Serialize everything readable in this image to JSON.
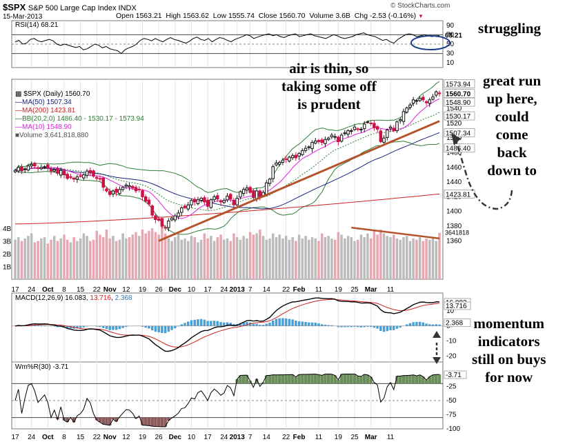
{
  "header": {
    "symbol": "$SPX",
    "name": "S&P 500 Large Cap Index  INDX",
    "date": "15-Mar-2013",
    "open_label": "Open",
    "open": "1563.21",
    "high_label": "High",
    "high": "1563.62",
    "low_label": "Low",
    "low": "1555.74",
    "close_label": "Close",
    "close": "1560.70",
    "volume_label": "Volume",
    "volume": "3.6B",
    "chg_label": "Chg",
    "chg": "-2.53 (-0.16%)",
    "chg_icon": "down-triangle-icon",
    "credit": "© StockCharts.com"
  },
  "annotations": {
    "struggling": "struggling",
    "air_thin": [
      "air is thin, so",
      "taking some off",
      "is prudent"
    ],
    "great_run": [
      "great run",
      "up here,",
      "could",
      "come",
      "back",
      "down to"
    ],
    "momentum": [
      "momentum",
      "indicators",
      "still on buys",
      "for now"
    ]
  },
  "colors": {
    "up_candle": "#111111",
    "down_candle": "#cc1144",
    "ma50": "#1a237e",
    "ma200": "#cc2222",
    "bollinger": "#2e7d32",
    "ma10": "#e020e0",
    "trendline": "#b5532b",
    "volume_up": "#bbbbbb",
    "volume_down": "#eaa6b0",
    "macd_hist": "#4a9fd4",
    "wpr_fill_top": "#6b8e5a",
    "wpr_fill_bottom": "#8b5a5a",
    "rsi_oval": "#1a3a8a"
  },
  "chart_data": [
    {
      "type": "line",
      "name": "rsi",
      "label": "RSI(14) 68.21",
      "ylim": [
        0,
        100
      ],
      "yticks": [
        "90",
        "70",
        "50",
        "30",
        "10"
      ],
      "last_value": "68.21",
      "reference_lines": [
        70,
        50,
        30
      ],
      "values": [
        55,
        58,
        50,
        52,
        60,
        62,
        57,
        55,
        58,
        60,
        57,
        50,
        47,
        50,
        48,
        45,
        43,
        45,
        38,
        40,
        45,
        50,
        48,
        42,
        45,
        40,
        38,
        36,
        30,
        38,
        42,
        45,
        50,
        58,
        62,
        60,
        57,
        62,
        58,
        55,
        60,
        64,
        60,
        58,
        55,
        52,
        56,
        62,
        65,
        60,
        58,
        62,
        55,
        60,
        64,
        62,
        58,
        55,
        60,
        63,
        66,
        70,
        68,
        62,
        65,
        68,
        70,
        72,
        68,
        70,
        66,
        64,
        68,
        70,
        72,
        66,
        68,
        70,
        72,
        68,
        66,
        64,
        62,
        66,
        70,
        68,
        64,
        62,
        64,
        66,
        70,
        72,
        74,
        70,
        68,
        66,
        62,
        58,
        60,
        55,
        52,
        60,
        65,
        70,
        72,
        70,
        66,
        68,
        70,
        68,
        66,
        68,
        68.21
      ]
    },
    {
      "type": "candlestick",
      "name": "price",
      "title": "$SPX (Daily) 1560.70",
      "legend": [
        {
          "label": "$SPX (Daily) 1560.70",
          "icon": "candle-icon"
        },
        {
          "label": "MA(50) 1507.34"
        },
        {
          "label": "MA(200) 1423.81"
        },
        {
          "label": "BB(20,2.0) 1486.40 - 1530.17 - 1573.94"
        },
        {
          "label": "MA(10) 1548.90"
        },
        {
          "label": "Volume 3,641,818,880"
        }
      ],
      "ylim": [
        1350,
        1580
      ],
      "yticks": [
        "1540",
        "1520",
        "1500",
        "1480",
        "1460",
        "1440",
        "1420",
        "1400",
        "1380",
        "1360"
      ],
      "price_labels": [
        {
          "value": 1573.94,
          "text": "1573.94",
          "series": "bb_upper"
        },
        {
          "value": 1560.7,
          "text": "1560.70",
          "series": "close"
        },
        {
          "value": 1548.9,
          "text": "1548.90",
          "series": "ma10"
        },
        {
          "value": 1530.17,
          "text": "1530.17",
          "series": "bb_mid"
        },
        {
          "value": 1507.34,
          "text": "1507.34",
          "series": "ma50"
        },
        {
          "value": 1486.4,
          "text": "1486.40",
          "series": "bb_lower"
        },
        {
          "value": 1423.81,
          "text": "1423.81",
          "series": "ma200"
        }
      ],
      "close": [
        1456,
        1460,
        1455,
        1458,
        1462,
        1464,
        1462,
        1459,
        1460,
        1461,
        1459,
        1455,
        1457,
        1452,
        1456,
        1450,
        1445,
        1447,
        1444,
        1447,
        1448,
        1450,
        1455,
        1453,
        1448,
        1445,
        1444,
        1433,
        1428,
        1423,
        1428,
        1426,
        1430,
        1433,
        1436,
        1435,
        1432,
        1428,
        1430,
        1420,
        1414,
        1410,
        1395,
        1389,
        1388,
        1380,
        1378,
        1387,
        1391,
        1394,
        1398,
        1405,
        1405,
        1409,
        1415,
        1413,
        1416,
        1418,
        1413,
        1407,
        1416,
        1420,
        1417,
        1413,
        1415,
        1421,
        1417,
        1409,
        1418,
        1427,
        1430,
        1432,
        1426,
        1419,
        1428,
        1420,
        1426,
        1439,
        1444,
        1461,
        1466,
        1467,
        1470,
        1471,
        1474,
        1476,
        1473,
        1479,
        1483,
        1486,
        1488,
        1494,
        1496,
        1495,
        1494,
        1498,
        1500,
        1504,
        1502,
        1495,
        1504,
        1507,
        1510,
        1510,
        1515,
        1512,
        1512,
        1519,
        1522,
        1520,
        1514,
        1512,
        1495,
        1500,
        1511,
        1515,
        1510,
        1522,
        1525,
        1536,
        1541,
        1545,
        1552,
        1551,
        1554,
        1552,
        1548,
        1552,
        1556,
        1563,
        1560.7
      ],
      "volume_billion": [
        3.1,
        3.3,
        3.0,
        3.2,
        3.4,
        3.6,
        2.9,
        3.0,
        3.2,
        3.3,
        2.8,
        3.1,
        3.4,
        3.0,
        3.2,
        3.5,
        3.1,
        2.9,
        3.3,
        3.0,
        3.2,
        3.6,
        3.4,
        3.0,
        3.1,
        3.8,
        3.5,
        3.3,
        3.9,
        3.2,
        3.4,
        3.0,
        3.1,
        3.6,
        3.2,
        3.3,
        3.5,
        3.7,
        3.4,
        3.9,
        3.6,
        3.8,
        4.0,
        3.7,
        3.5,
        4.2,
        3.6,
        3.2,
        3.0,
        3.3,
        3.5,
        3.1,
        3.2,
        3.0,
        3.4,
        3.3,
        2.9,
        3.1,
        3.6,
        3.2,
        3.4,
        3.0,
        3.3,
        3.5,
        3.1,
        3.2,
        3.0,
        3.6,
        3.3,
        3.1,
        3.4,
        3.2,
        3.7,
        3.5,
        3.6,
        3.9,
        3.4,
        3.1,
        3.2,
        3.6,
        3.3,
        3.5,
        3.2,
        3.4,
        3.1,
        3.3,
        3.0,
        3.5,
        3.2,
        3.4,
        3.1,
        3.3,
        3.2,
        3.0,
        3.6,
        3.3,
        3.4,
        3.2,
        3.1,
        3.7,
        3.5,
        3.2,
        3.4,
        3.3,
        3.0,
        3.1,
        3.5,
        3.3,
        3.6,
        3.2,
        3.8,
        3.5,
        3.9,
        3.6,
        3.4,
        3.3,
        3.5,
        3.2,
        3.1,
        3.3,
        3.4,
        3.0,
        3.2,
        3.1,
        3.3,
        3.0,
        3.2,
        3.1,
        3.3,
        3.0,
        3.64
      ],
      "volume_ylim": [
        0,
        4.6
      ],
      "volume_ticks": [
        "4B",
        "3B",
        "2B",
        "1B"
      ],
      "volume_label": "3641818",
      "trendline": {
        "from_bar": 44,
        "from_value": 1360,
        "to_bar": 130,
        "to_value": 1523
      }
    },
    {
      "type": "line",
      "name": "macd",
      "label": "MACD(12,26,9) 16.083, 13.716, 2.368",
      "label_parts": {
        "title": "MACD(12,26,9)",
        "macd": "16.083",
        "signal": "13.716",
        "hist": "2.368"
      },
      "ylim": [
        -24,
        22
      ],
      "yticks": [
        "10",
        "0",
        "-10",
        "-20"
      ],
      "price_labels": [
        {
          "value": 16.083,
          "text": "16.083"
        },
        {
          "value": 13.716,
          "text": "13.716"
        },
        {
          "value": 2.368,
          "text": "2.368"
        }
      ]
    },
    {
      "type": "line",
      "name": "wpr",
      "label": "Wm%R(30) -3.71",
      "ylim": [
        -100,
        0
      ],
      "yticks": [
        "-25",
        "-50",
        "-75",
        "-100"
      ],
      "last_value": "-3.71",
      "price_labels": [
        {
          "value": -3.71,
          "text": "-3.71"
        }
      ]
    }
  ],
  "x_axis": {
    "ticks": [
      "17",
      "24",
      "Oct",
      "8",
      "15",
      "22",
      "Nov",
      "12",
      "19",
      "26",
      "Dec",
      "10",
      "17",
      "24",
      "2013",
      "7",
      "14",
      "22",
      "Feb",
      "11",
      "19",
      "25",
      "Mar",
      "11"
    ],
    "bold": [
      "Oct",
      "Nov",
      "Dec",
      "2013",
      "Feb",
      "Mar"
    ]
  }
}
